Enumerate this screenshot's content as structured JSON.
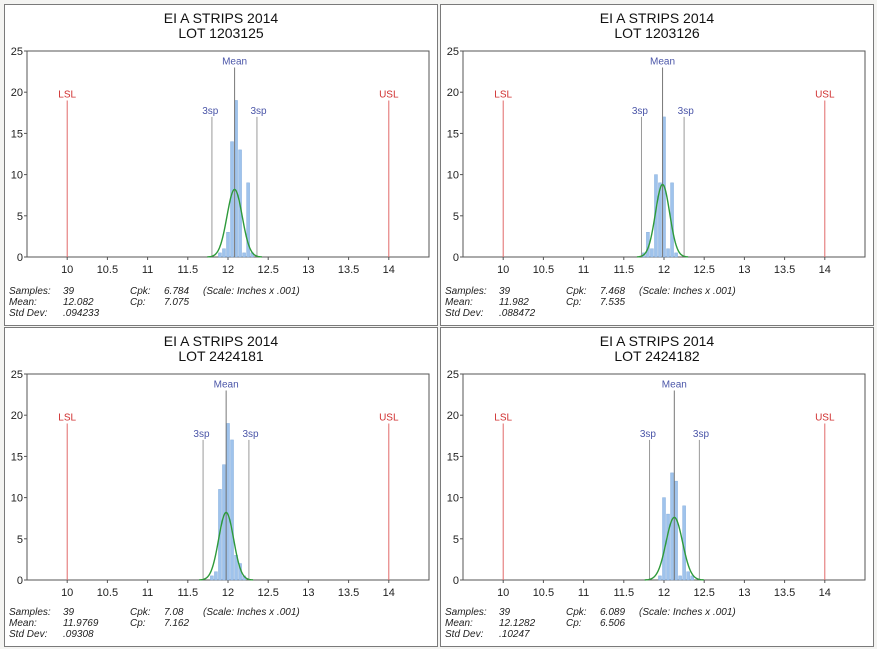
{
  "common": {
    "lsl_label": "LSL",
    "usl_label": "USL",
    "mean_label": "Mean",
    "sigma_label": "3sp",
    "samples_label": "Samples:",
    "mean_stat_label": "Mean:",
    "std_label": "Std Dev:",
    "cpk_label": "Cpk:",
    "cp_label": "Cp:",
    "scale_note": "(Scale: Inches x .001)",
    "colors": {
      "bar": "#9fc3ec",
      "curve": "#2e9a3a",
      "limit": "#e06a6a",
      "mean_line": "#777777",
      "label_blue": "#4a55a8",
      "label_red": "#d03030"
    }
  },
  "chart_data": [
    {
      "type": "bar",
      "title": "EI A STRIPS 2014",
      "subtitle": "LOT 1203125",
      "xlim": [
        9.5,
        14.5
      ],
      "ylim": [
        0,
        25
      ],
      "xticks": [
        "10",
        "10.5",
        "11",
        "11.5",
        "12",
        "12.5",
        "13",
        "13.5",
        "14"
      ],
      "xtick_values": [
        10,
        10.5,
        11,
        11.5,
        12,
        12.5,
        13,
        13.5,
        14
      ],
      "yticks": [
        "0",
        "5",
        "10",
        "15",
        "20",
        "25"
      ],
      "ytick_values": [
        0,
        5,
        10,
        15,
        20,
        25
      ],
      "bins": [
        11.9,
        11.95,
        12.0,
        12.05,
        12.1,
        12.15,
        12.2,
        12.25,
        12.3
      ],
      "counts": [
        0.5,
        1,
        3,
        14,
        19,
        13,
        0.5,
        9,
        0.5
      ],
      "lsl": 10,
      "usl": 14,
      "mean": 12.082,
      "lower_3s": 11.8,
      "upper_3s": 12.36,
      "curve_peak": 8.2,
      "curve_sigma": 0.094233,
      "samples": "39",
      "mean_text": "12.082",
      "std_text": ".094233",
      "cpk": "6.784",
      "cp": "7.075"
    },
    {
      "type": "bar",
      "title": "EI A STRIPS 2014",
      "subtitle": "LOT 1203126",
      "xlim": [
        9.5,
        14.5
      ],
      "ylim": [
        0,
        25
      ],
      "xticks": [
        "10",
        "10.5",
        "11",
        "11.5",
        "12",
        "12.5",
        "13",
        "13.5",
        "14"
      ],
      "xtick_values": [
        10,
        10.5,
        11,
        11.5,
        12,
        12.5,
        13,
        13.5,
        14
      ],
      "yticks": [
        "0",
        "5",
        "10",
        "15",
        "20",
        "25"
      ],
      "ytick_values": [
        0,
        5,
        10,
        15,
        20,
        25
      ],
      "bins": [
        11.75,
        11.8,
        11.85,
        11.9,
        11.95,
        12.0,
        12.05,
        12.1,
        12.15
      ],
      "counts": [
        0.5,
        3,
        1,
        10,
        9,
        17,
        1,
        9,
        0.5
      ],
      "lsl": 10,
      "usl": 14,
      "mean": 11.982,
      "lower_3s": 11.72,
      "upper_3s": 12.25,
      "curve_peak": 8.8,
      "curve_sigma": 0.088472,
      "samples": "39",
      "mean_text": "11.982",
      "std_text": ".088472",
      "cpk": "7.468",
      "cp": "7.535"
    },
    {
      "type": "bar",
      "title": "EI A STRIPS 2014",
      "subtitle": "LOT 2424181",
      "xlim": [
        9.5,
        14.5
      ],
      "ylim": [
        0,
        25
      ],
      "xticks": [
        "10",
        "10.5",
        "11",
        "11.5",
        "12",
        "12.5",
        "13",
        "13.5",
        "14"
      ],
      "xtick_values": [
        10,
        10.5,
        11,
        11.5,
        12,
        12.5,
        13,
        13.5,
        14
      ],
      "yticks": [
        "0",
        "5",
        "10",
        "15",
        "20",
        "25"
      ],
      "ytick_values": [
        0,
        5,
        10,
        15,
        20,
        25
      ],
      "bins": [
        11.8,
        11.85,
        11.9,
        11.95,
        12.0,
        12.05,
        12.1,
        12.15,
        12.2
      ],
      "counts": [
        0.5,
        1,
        11,
        14,
        19,
        17,
        3,
        2,
        0.5
      ],
      "lsl": 10,
      "usl": 14,
      "mean": 11.9769,
      "lower_3s": 11.69,
      "upper_3s": 12.26,
      "curve_peak": 8.2,
      "curve_sigma": 0.09308,
      "samples": "39",
      "mean_text": "11.9769",
      "std_text": ".09308",
      "cpk": "7.08",
      "cp": "7.162"
    },
    {
      "type": "bar",
      "title": "EI A STRIPS 2014",
      "subtitle": "LOT 2424182",
      "xlim": [
        9.5,
        14.5
      ],
      "ylim": [
        0,
        25
      ],
      "xticks": [
        "10",
        "10.5",
        "11",
        "11.5",
        "12",
        "12.5",
        "13",
        "13.5",
        "14"
      ],
      "xtick_values": [
        10,
        10.5,
        11,
        11.5,
        12,
        12.5,
        13,
        13.5,
        14
      ],
      "yticks": [
        "0",
        "5",
        "10",
        "15",
        "20",
        "25"
      ],
      "ytick_values": [
        0,
        5,
        10,
        15,
        20,
        25
      ],
      "bins": [
        11.95,
        12.0,
        12.05,
        12.1,
        12.15,
        12.2,
        12.25,
        12.3,
        12.35
      ],
      "counts": [
        0.5,
        10,
        8,
        13,
        12,
        0.5,
        9,
        1,
        0.5
      ],
      "lsl": 10,
      "usl": 14,
      "mean": 12.1282,
      "lower_3s": 11.82,
      "upper_3s": 12.44,
      "curve_peak": 7.6,
      "curve_sigma": 0.10247,
      "samples": "39",
      "mean_text": "12.1282",
      "std_text": ".10247",
      "cpk": "6.089",
      "cp": "6.506"
    }
  ]
}
